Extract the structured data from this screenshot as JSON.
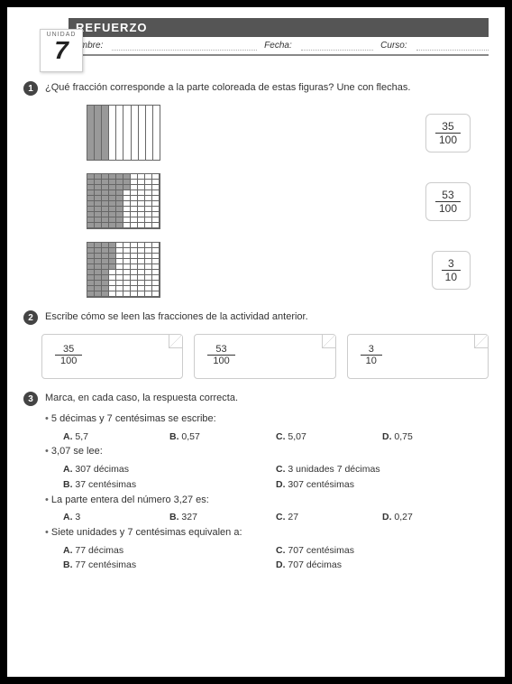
{
  "header": {
    "unit_label": "UNIDAD",
    "unit_num": "7",
    "title": "REFUERZO",
    "name_label": "Nombre:",
    "date_label": "Fecha:",
    "course_label": "Curso:"
  },
  "q1": {
    "num": "1",
    "text": "¿Qué fracción corresponde a la parte coloreada de estas figuras? Une con flechas.",
    "figures": [
      {
        "type": "cols10",
        "shaded": 3
      },
      {
        "type": "grid100",
        "shaded": 53
      },
      {
        "type": "grid100",
        "shaded": 35
      }
    ],
    "fracs": [
      {
        "num": "35",
        "den": "100"
      },
      {
        "num": "53",
        "den": "100"
      },
      {
        "num": "3",
        "den": "10"
      }
    ]
  },
  "q2": {
    "num": "2",
    "text": "Escribe cómo se leen las fracciones de la actividad anterior.",
    "fracs": [
      {
        "num": "35",
        "den": "100"
      },
      {
        "num": "53",
        "den": "100"
      },
      {
        "num": "3",
        "den": "10"
      }
    ]
  },
  "q3": {
    "num": "3",
    "text": "Marca, en cada caso, la respuesta correcta.",
    "items": [
      {
        "prompt": "5 décimas y 7 centésimas se escribe:",
        "layout": "four",
        "opts": [
          [
            "A.",
            "5,7"
          ],
          [
            "B.",
            "0,57"
          ],
          [
            "C.",
            "5,07"
          ],
          [
            "D.",
            "0,75"
          ]
        ]
      },
      {
        "prompt": "3,07 se lee:",
        "layout": "two",
        "opts": [
          [
            "A.",
            "307 décimas"
          ],
          [
            "C.",
            "3 unidades  7 décimas"
          ],
          [
            "B.",
            "37 centésimas"
          ],
          [
            "D.",
            "307 centésimas"
          ]
        ]
      },
      {
        "prompt": "La parte entera del número 3,27 es:",
        "layout": "four",
        "opts": [
          [
            "A.",
            "3"
          ],
          [
            "B.",
            "327"
          ],
          [
            "C.",
            "27"
          ],
          [
            "D.",
            "0,27"
          ]
        ]
      },
      {
        "prompt": "Siete unidades y 7 centésimas equivalen a:",
        "layout": "two",
        "opts": [
          [
            "A.",
            "77 décimas"
          ],
          [
            "C.",
            "707 centésimas"
          ],
          [
            "B.",
            "77 centésimas"
          ],
          [
            "D.",
            "707 décimas"
          ]
        ]
      }
    ]
  }
}
